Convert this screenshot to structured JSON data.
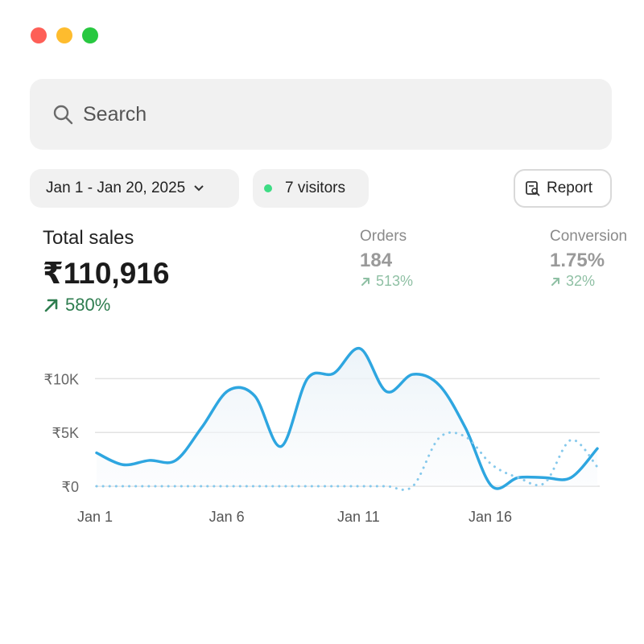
{
  "window_controls": {
    "close_color": "#fe5f57",
    "minimize_color": "#febc2e",
    "zoom_color": "#28c840"
  },
  "search": {
    "placeholder": "Search",
    "icon": "search-icon"
  },
  "filters": {
    "date_range": "Jan 1 - Jan 20, 2025",
    "visitors": "7 visitors",
    "live_dot_color": "#3ddc84",
    "report_label": "Report"
  },
  "total_sales": {
    "label": "Total sales",
    "value": "₹110,916",
    "change": "580%",
    "change_color": "#2e7d4f"
  },
  "orders": {
    "label": "Orders",
    "value": "184",
    "change": "513%"
  },
  "conversion": {
    "label": "Conversion",
    "value": "1.75%",
    "change": "32%"
  },
  "sub_change_color": "#8fc0a4",
  "chart_data": {
    "type": "line",
    "x": [
      1,
      2,
      3,
      4,
      5,
      6,
      7,
      8,
      9,
      10,
      11,
      12,
      13,
      14,
      15,
      16,
      17,
      18,
      19,
      20
    ],
    "x_tick_labels": [
      {
        "x": 1,
        "label": "Jan 1"
      },
      {
        "x": 6,
        "label": "Jan 6"
      },
      {
        "x": 11,
        "label": "Jan 11"
      },
      {
        "x": 16,
        "label": "Jan 16"
      }
    ],
    "y_ticks": [
      {
        "value": 0,
        "label": "₹0"
      },
      {
        "value": 5000,
        "label": "₹5K"
      },
      {
        "value": 10000,
        "label": "₹10K"
      }
    ],
    "ylim": [
      0,
      12800
    ],
    "xlim": [
      1,
      20
    ],
    "series": [
      {
        "style": "solid",
        "color": "#2ea6e0",
        "values": [
          3100,
          2000,
          2400,
          2400,
          5500,
          8900,
          8400,
          3700,
          10000,
          10500,
          12800,
          8800,
          10400,
          9400,
          5400,
          0,
          800,
          800,
          800,
          3500
        ]
      },
      {
        "style": "dotted",
        "color": "#86c9ec",
        "values": [
          0,
          0,
          0,
          0,
          0,
          0,
          0,
          0,
          0,
          0,
          0,
          0,
          0,
          4500,
          4600,
          2000,
          800,
          300,
          4300,
          1800
        ]
      }
    ],
    "grid": true
  }
}
